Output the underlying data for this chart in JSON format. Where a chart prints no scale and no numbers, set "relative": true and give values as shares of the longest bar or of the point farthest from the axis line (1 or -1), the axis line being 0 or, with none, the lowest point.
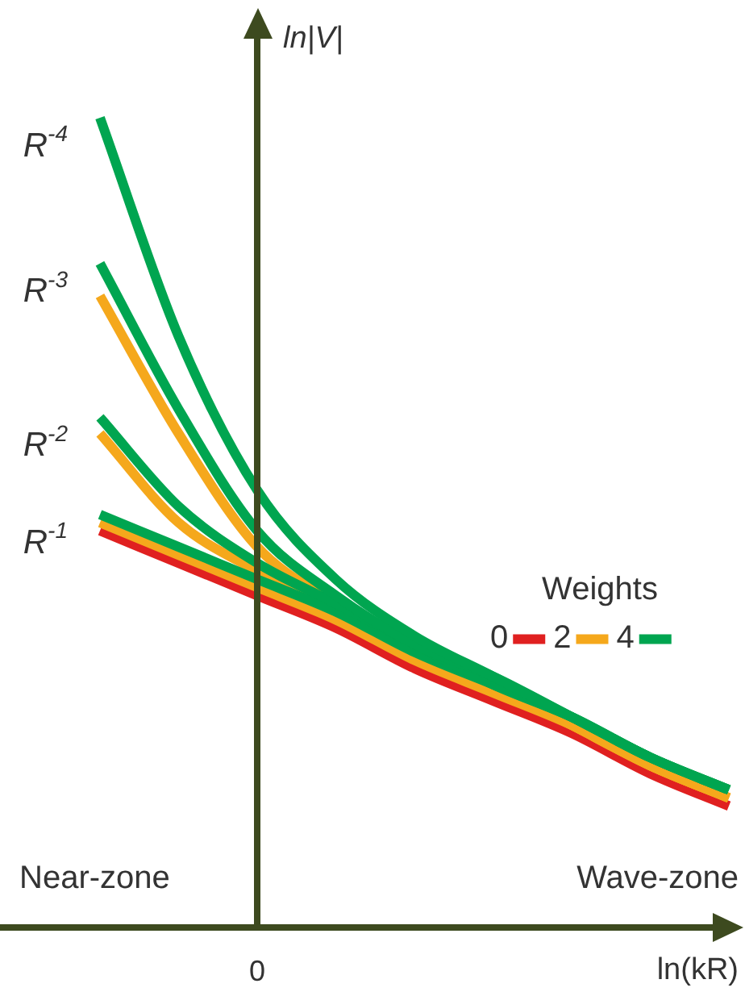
{
  "chart_data": {
    "type": "line",
    "relative": true,
    "xlabel": "ln(kR)",
    "ylabel": "ln|V|",
    "legend_title": "Weights",
    "legend": "right",
    "categories": [
      null,
      null,
      null,
      null,
      null,
      null,
      null,
      null,
      null
    ],
    "series": [
      {
        "name": "0",
        "color": "#e02020",
        "values": [
          0.49,
          0.45,
          0.41,
          0.37,
          0.32,
          0.28,
          0.24,
          0.19,
          0.15
        ]
      },
      {
        "name": "2",
        "color": "#f5a81c",
        "values": [
          0.5,
          0.46,
          0.42,
          0.38,
          0.33,
          0.29,
          0.25,
          0.2,
          0.16
        ]
      },
      {
        "color": "#f5a81c",
        "values": [
          0.61,
          0.5,
          0.44,
          0.39,
          0.34,
          0.3,
          0.25,
          0.2,
          0.16
        ]
      },
      {
        "color": "#f5a81c",
        "values": [
          0.78,
          0.61,
          0.47,
          0.4,
          0.34,
          0.3,
          0.25,
          0.2,
          0.16
        ]
      },
      {
        "name": "4",
        "color": "#00a550",
        "values": [
          0.51,
          0.47,
          0.43,
          0.39,
          0.34,
          0.3,
          0.26,
          0.21,
          0.17
        ]
      },
      {
        "color": "#00a550",
        "values": [
          0.63,
          0.52,
          0.45,
          0.4,
          0.35,
          0.3,
          0.26,
          0.21,
          0.17
        ]
      },
      {
        "color": "#00a550",
        "values": [
          0.82,
          0.64,
          0.49,
          0.41,
          0.35,
          0.31,
          0.26,
          0.21,
          0.17
        ]
      },
      {
        "color": "#00a550",
        "values": [
          1,
          0.73,
          0.54,
          0.43,
          0.36,
          0.31,
          0.26,
          0.21,
          0.17
        ]
      }
    ],
    "annotations": [
      "R$^{-1}$",
      "R$^{-2}$",
      "R$^{-3}$",
      "R$^{-4}$",
      "0",
      "Near-zone",
      "Wave-zone"
    ]
  }
}
